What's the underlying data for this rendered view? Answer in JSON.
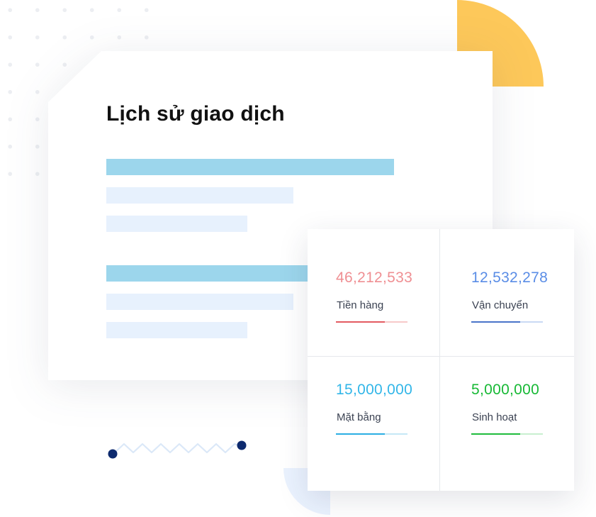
{
  "history": {
    "title": "Lịch sử giao dịch"
  },
  "stats": [
    {
      "value": "46,212,533",
      "label": "Tiền hàng",
      "color": "#ef8f93",
      "line_color": "#e35b61",
      "track_color": "#f7c9c9"
    },
    {
      "value": "12,532,278",
      "label": "Vận chuyển",
      "color": "#5a8de6",
      "line_color": "#4a74c9",
      "track_color": "#c9d9f4"
    },
    {
      "value": "15,000,000",
      "label": "Mặt bằng",
      "color": "#32b6e8",
      "line_color": "#2aaee3",
      "track_color": "#c5e8f6"
    },
    {
      "value": "5,000,000",
      "label": "Sinh hoạt",
      "color": "#17b935",
      "line_color": "#1fbc3c",
      "track_color": "#c8efcf"
    }
  ],
  "colors": {
    "accent_yellow": "#fdc85a",
    "bar_dark": "#9cd6ec",
    "bar_light": "#e7f1fd",
    "dot_navy": "#0d2a6e"
  }
}
